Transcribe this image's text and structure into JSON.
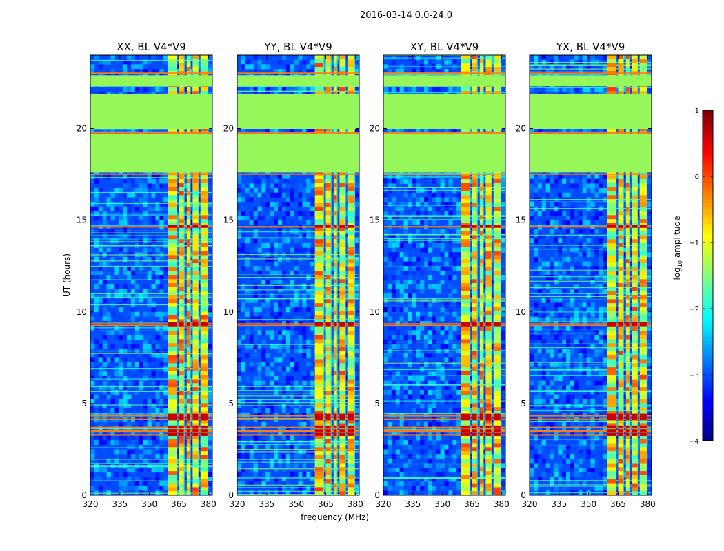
{
  "suptitle": "2016-03-14 0.0-24.0",
  "colors": {
    "background_green": "#96f75a",
    "band_orange": "#ff7a10",
    "axis": "#000000"
  },
  "chart_data": [
    {
      "type": "heatmap",
      "title": "XX, BL V4*V9",
      "xlabel": "",
      "ylabel": "UT (hours)",
      "x_range": [
        320,
        382
      ],
      "y_range": [
        0,
        24
      ],
      "xticks": [
        320,
        335,
        350,
        365,
        380
      ],
      "yticks": [
        0,
        5,
        10,
        15,
        20
      ],
      "rfi_channels_mhz": [
        [
          359.5,
          363.8
        ],
        [
          365,
          367.5
        ],
        [
          369,
          370.6
        ],
        [
          372,
          374.8
        ],
        [
          376,
          379.5
        ]
      ],
      "flagged_ut_ranges": [
        [
          17.6,
          19.7
        ],
        [
          19.95,
          21.9
        ],
        [
          22.3,
          22.9
        ]
      ],
      "strong_ut_rows": [
        3.25,
        3.45,
        3.65,
        4.1,
        4.3,
        9.2,
        9.3,
        14.6,
        17.9
      ]
    },
    {
      "type": "heatmap",
      "title": "YY, BL V4*V9",
      "xlabel": "frequency (MHz)",
      "ylabel": "",
      "x_range": [
        320,
        382
      ],
      "y_range": [
        0,
        24
      ],
      "xticks": [
        320,
        335,
        350,
        365,
        380
      ],
      "yticks": [
        0,
        5,
        10,
        15,
        20
      ],
      "rfi_channels_mhz": [
        [
          359.5,
          363.8
        ],
        [
          365,
          367.5
        ],
        [
          369,
          370.6
        ],
        [
          372,
          374.8
        ],
        [
          376,
          379.5
        ]
      ],
      "flagged_ut_ranges": [
        [
          17.6,
          19.7
        ],
        [
          19.95,
          21.9
        ],
        [
          22.3,
          22.9
        ]
      ],
      "strong_ut_rows": [
        3.25,
        3.45,
        3.65,
        4.1,
        4.3,
        9.2,
        9.3,
        14.6,
        17.9
      ]
    },
    {
      "type": "heatmap",
      "title": "XY, BL V4*V9",
      "xlabel": "",
      "ylabel": "",
      "x_range": [
        320,
        382
      ],
      "y_range": [
        0,
        24
      ],
      "xticks": [
        320,
        335,
        350,
        365,
        380
      ],
      "yticks": [
        0,
        5,
        10,
        15,
        20
      ],
      "rfi_channels_mhz": [
        [
          359.5,
          363.8
        ],
        [
          365,
          367.5
        ],
        [
          369,
          370.6
        ],
        [
          372,
          374.8
        ],
        [
          376,
          379.5
        ]
      ],
      "flagged_ut_ranges": [
        [
          17.6,
          19.7
        ],
        [
          19.95,
          21.9
        ],
        [
          22.3,
          22.9
        ]
      ],
      "strong_ut_rows": [
        3.25,
        3.45,
        3.65,
        4.1,
        4.3,
        9.2,
        9.3,
        14.6,
        17.9
      ]
    },
    {
      "type": "heatmap",
      "title": "YX, BL V4*V9",
      "xlabel": "",
      "ylabel": "",
      "x_range": [
        320,
        382
      ],
      "y_range": [
        0,
        24
      ],
      "xticks": [
        320,
        335,
        350,
        365,
        380
      ],
      "yticks": [
        0,
        5,
        10,
        15,
        20
      ],
      "rfi_channels_mhz": [
        [
          359.5,
          363.8
        ],
        [
          365,
          367.5
        ],
        [
          369,
          370.6
        ],
        [
          372,
          374.8
        ],
        [
          376,
          379.5
        ]
      ],
      "flagged_ut_ranges": [
        [
          17.6,
          19.7
        ],
        [
          19.95,
          21.9
        ],
        [
          22.3,
          22.9
        ]
      ],
      "strong_ut_rows": [
        3.25,
        3.45,
        3.65,
        4.1,
        4.3,
        9.2,
        9.3,
        14.6,
        17.9
      ]
    }
  ],
  "colorbar": {
    "label_prefix": "log",
    "label_subscript": "10",
    "label_suffix": " amplitude",
    "range": [
      -4,
      1
    ],
    "ticks": [
      1,
      0,
      -1,
      -2,
      -3,
      -4
    ],
    "tick_labels": [
      "1",
      "0",
      "−1",
      "−2",
      "−3",
      "−4"
    ],
    "colormap": "jet"
  }
}
